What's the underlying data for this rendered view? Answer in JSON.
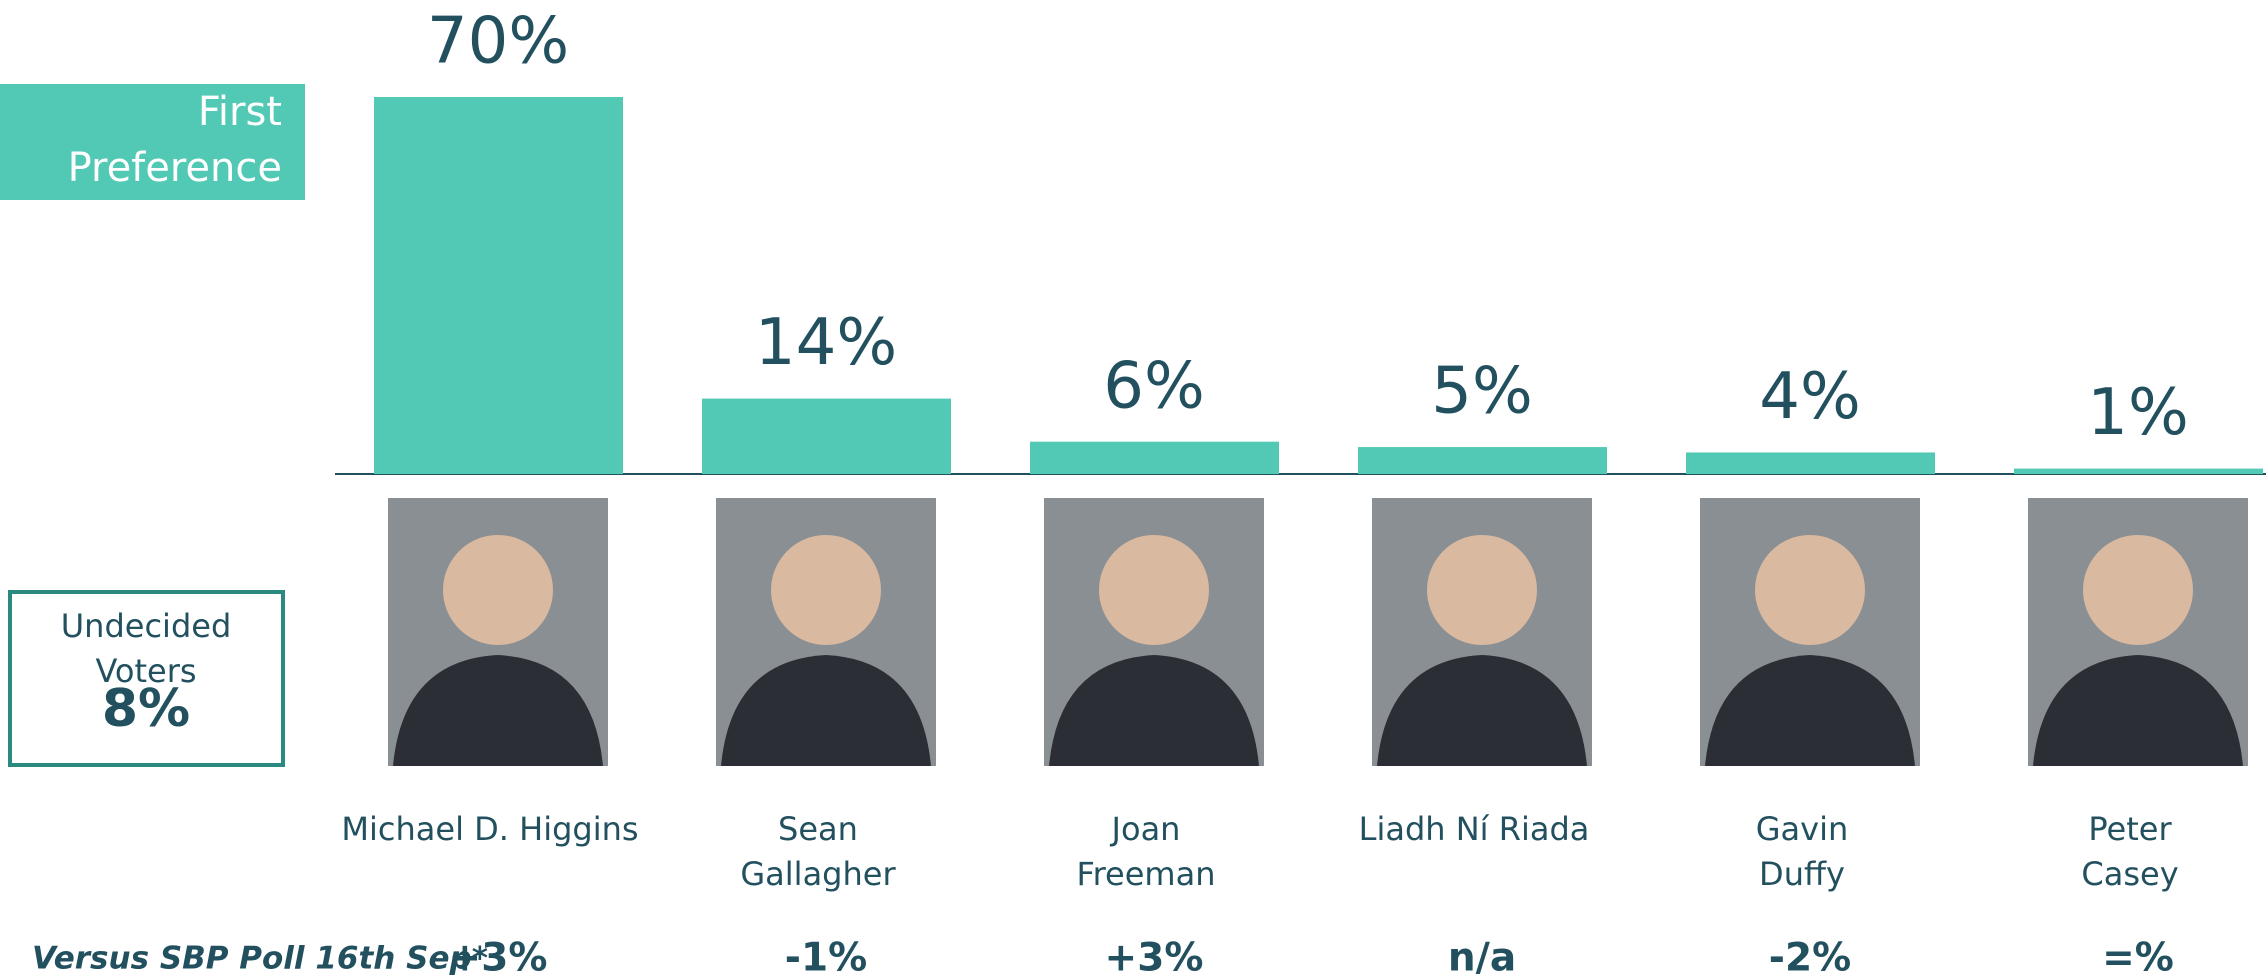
{
  "chart_data": {
    "type": "bar",
    "legend": "First\nPreference",
    "categories": [
      "Michael D. Higgins",
      "Sean\nGallagher",
      "Joan\nFreeman",
      "Liadh Ní Riada",
      "Gavin\nDuffy",
      "Peter\nCasey"
    ],
    "values": [
      70,
      14,
      6,
      5,
      4,
      1
    ],
    "value_labels": [
      "70%",
      "14%",
      "6%",
      "5%",
      "4%",
      "1%"
    ],
    "color": "#52c9b4",
    "undecided": {
      "label": "Undecided\nVoters",
      "value": 8,
      "value_label": "8%"
    },
    "change_title": "Versus SBP Poll 16th Sep*",
    "changes": [
      "+3%",
      "-1%",
      "+3%",
      "n/a",
      "-2%",
      "=%"
    ]
  }
}
